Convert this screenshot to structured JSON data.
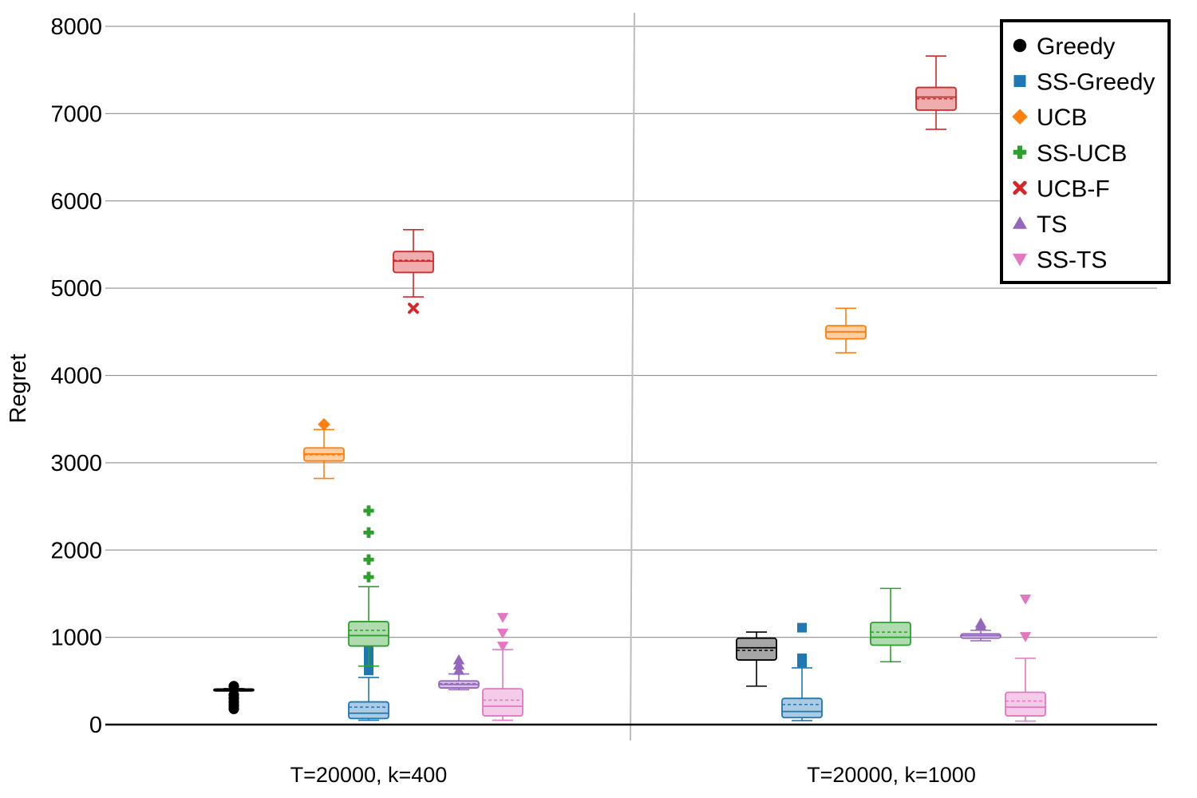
{
  "chart_data": {
    "type": "box",
    "title": "",
    "xlabel": "",
    "ylabel": "Regret",
    "ylim": [
      0,
      8000
    ],
    "yticks": [
      0,
      1000,
      2000,
      3000,
      4000,
      5000,
      6000,
      7000,
      8000
    ],
    "grid": true,
    "legend_position": "top-right",
    "categories": [
      "T=20000, k=400",
      "T=20000, k=1000"
    ],
    "series": [
      {
        "name": "Greedy",
        "color": "#000000",
        "marker": "circle",
        "boxes": [
          {
            "whisker_low": 390,
            "q1": 392,
            "median": 400,
            "mean": 400,
            "q3": 408,
            "whisker_high": 412,
            "outliers": [
              180,
              220,
              260,
              300,
              340,
              440
            ]
          },
          {
            "whisker_low": 440,
            "q1": 740,
            "median": 880,
            "mean": 850,
            "q3": 990,
            "whisker_high": 1060,
            "outliers": []
          }
        ]
      },
      {
        "name": "SS-Greedy",
        "color": "#1f77b4",
        "marker": "square",
        "boxes": [
          {
            "whisker_low": 50,
            "q1": 70,
            "median": 130,
            "mean": 200,
            "q3": 260,
            "whisker_high": 540,
            "outliers": [
              620,
              700,
              780,
              860,
              960,
              1040
            ]
          },
          {
            "whisker_low": 45,
            "q1": 80,
            "median": 150,
            "mean": 230,
            "q3": 300,
            "whisker_high": 650,
            "outliers": [
              710,
              760,
              1110
            ]
          }
        ]
      },
      {
        "name": "UCB",
        "color": "#ff7f0e",
        "marker": "diamond",
        "boxes": [
          {
            "whisker_low": 2820,
            "q1": 3020,
            "median": 3100,
            "mean": 3090,
            "q3": 3170,
            "whisker_high": 3380,
            "outliers": [
              3440
            ]
          },
          {
            "whisker_low": 4260,
            "q1": 4420,
            "median": 4500,
            "mean": 4500,
            "q3": 4570,
            "whisker_high": 4770,
            "outliers": []
          }
        ]
      },
      {
        "name": "SS-UCB",
        "color": "#2ca02c",
        "marker": "plus",
        "boxes": [
          {
            "whisker_low": 670,
            "q1": 900,
            "median": 1020,
            "mean": 1080,
            "q3": 1180,
            "whisker_high": 1580,
            "outliers": [
              1690,
              1890,
              2200,
              2450
            ]
          },
          {
            "whisker_low": 720,
            "q1": 910,
            "median": 1000,
            "mean": 1060,
            "q3": 1170,
            "whisker_high": 1560,
            "outliers": []
          }
        ]
      },
      {
        "name": "UCB-F",
        "color": "#d62728",
        "marker": "x",
        "boxes": [
          {
            "whisker_low": 4900,
            "q1": 5180,
            "median": 5310,
            "mean": 5320,
            "q3": 5420,
            "whisker_high": 5670,
            "outliers": [
              4770
            ]
          },
          {
            "whisker_low": 6820,
            "q1": 7040,
            "median": 7190,
            "mean": 7170,
            "q3": 7300,
            "whisker_high": 7660,
            "outliers": []
          }
        ]
      },
      {
        "name": "TS",
        "color": "#9467bd",
        "marker": "triangle-up",
        "boxes": [
          {
            "whisker_low": 400,
            "q1": 420,
            "median": 460,
            "mean": 470,
            "q3": 500,
            "whisker_high": 580,
            "outliers": [
              620,
              680,
              740
            ]
          },
          {
            "whisker_low": 960,
            "q1": 990,
            "median": 1020,
            "mean": 1020,
            "q3": 1040,
            "whisker_high": 1080,
            "outliers": [
              1130,
              1160
            ]
          }
        ]
      },
      {
        "name": "SS-TS",
        "color": "#e377c2",
        "marker": "triangle-down",
        "boxes": [
          {
            "whisker_low": 50,
            "q1": 100,
            "median": 210,
            "mean": 280,
            "q3": 410,
            "whisker_high": 860,
            "outliers": [
              900,
              1050,
              1230
            ]
          },
          {
            "whisker_low": 40,
            "q1": 100,
            "median": 200,
            "mean": 270,
            "q3": 370,
            "whisker_high": 760,
            "outliers": [
              1010,
              1440
            ]
          }
        ]
      }
    ]
  }
}
